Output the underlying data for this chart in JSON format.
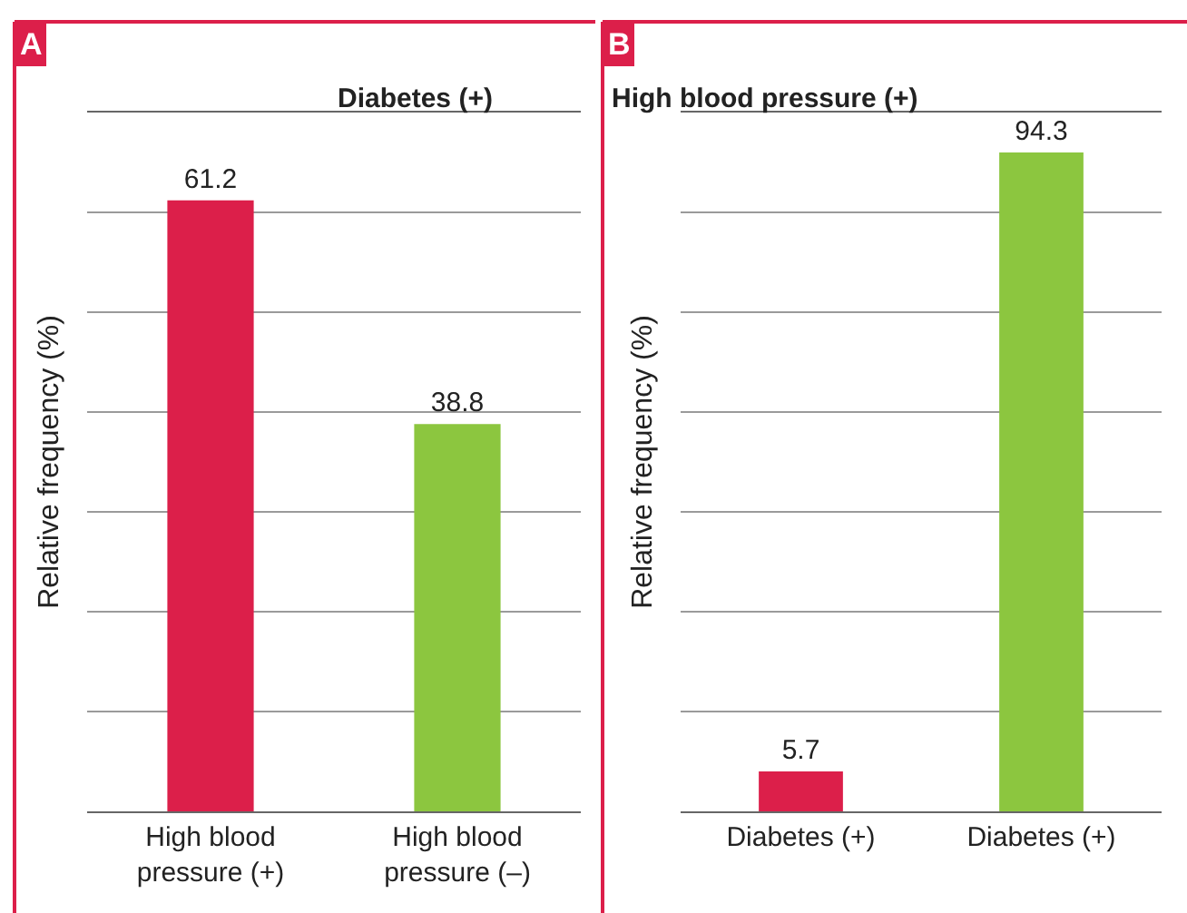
{
  "chart_data": [
    {
      "type": "bar",
      "title": "Diabetes (+)",
      "ylabel": "Relative frequency (%)",
      "annotations": [
        "A"
      ],
      "categories": [
        "High blood\npressure (+)",
        "High blood\npressure (–)"
      ],
      "values": [
        61.2,
        38.8
      ],
      "colors": [
        "#dc1f4a",
        "#8cc63f"
      ],
      "data_labels": true,
      "ylim": [
        0,
        70
      ],
      "yticks": [
        {
          "value": 10,
          "label": null
        },
        {
          "value": 20,
          "label": null
        },
        {
          "value": 30,
          "label": null
        },
        {
          "value": 40,
          "label": null
        },
        {
          "value": 50,
          "label": null
        },
        {
          "value": 60,
          "label": null
        },
        {
          "value": 70,
          "label": null
        }
      ],
      "grid": "y",
      "tick_labels": "x"
    },
    {
      "type": "bar",
      "title": "High blood pressure (+)",
      "ylabel": "Relative frequency (%)",
      "annotations": [
        "B"
      ],
      "categories": [
        "Diabetes (+)",
        "Diabetes (+)"
      ],
      "values": [
        5.7,
        94.3
      ],
      "colors": [
        "#dc1f4a",
        "#8cc63f"
      ],
      "data_labels": true,
      "ylim": [
        0,
        100
      ],
      "yticks": [
        {
          "value": 14.3,
          "label": null
        },
        {
          "value": 28.6,
          "label": null
        },
        {
          "value": 42.9,
          "label": null
        },
        {
          "value": 57.1,
          "label": null
        },
        {
          "value": 71.4,
          "label": null
        },
        {
          "value": 85.7,
          "label": null
        },
        {
          "value": 100,
          "label": null
        }
      ],
      "grid": "y",
      "tick_labels": "x"
    }
  ]
}
